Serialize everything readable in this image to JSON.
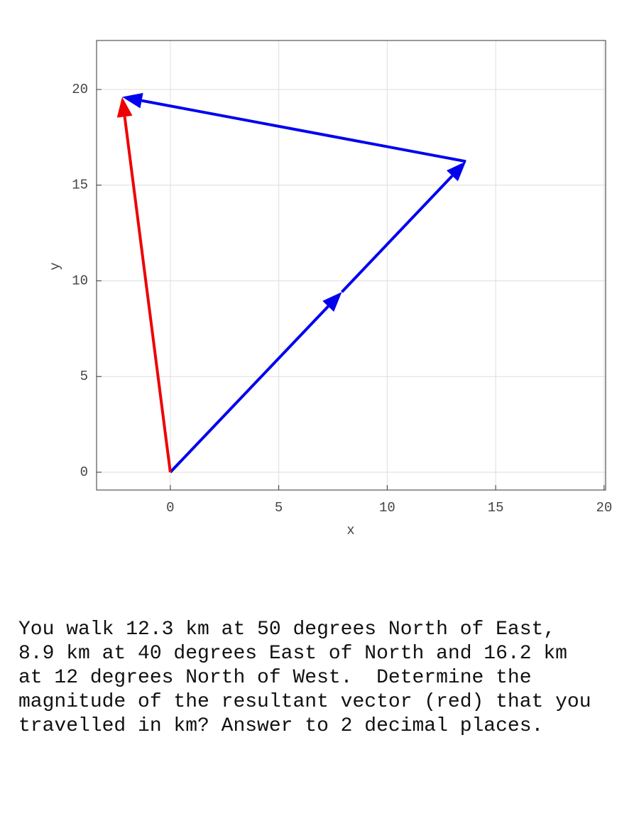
{
  "chart_data": {
    "type": "vector",
    "xlabel": "x",
    "ylabel": "y",
    "xlim": [
      -3.4,
      20.07
    ],
    "ylim": [
      -0.93,
      22.56
    ],
    "xticks": [
      0,
      5,
      10,
      15,
      20
    ],
    "yticks": [
      0,
      5,
      10,
      15,
      20
    ],
    "grid": true,
    "vectors": [
      {
        "color": "#0000ee",
        "x": [
          0,
          7.91
        ],
        "y": [
          0,
          9.42
        ]
      },
      {
        "color": "#0000ee",
        "x": [
          7.91,
          13.63
        ],
        "y": [
          9.42,
          16.24
        ]
      },
      {
        "color": "#0000ee",
        "x": [
          13.63,
          -2.22
        ],
        "y": [
          16.24,
          19.61
        ]
      },
      {
        "color": "#ee0000",
        "x": [
          0,
          -2.22
        ],
        "y": [
          0,
          19.61
        ]
      }
    ]
  },
  "question": {
    "lines": [
      "You walk 12.3 km at 50 degrees North of East,",
      "8.9 km at 40 degrees East of North and 16.2 km",
      "at 12 degrees North of West.  Determine the",
      "magnitude of the resultant vector (red) that you",
      "travelled in km? Answer to 2 decimal places."
    ]
  }
}
